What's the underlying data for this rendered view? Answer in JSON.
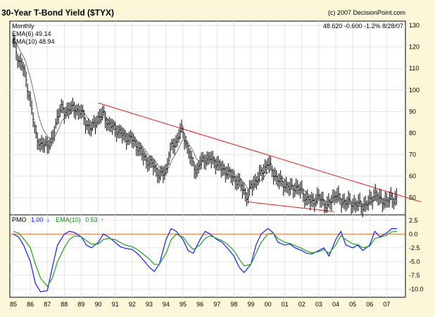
{
  "header": {
    "title": "30-Year T-Bond Yield ($TYX)",
    "copyright": "(c) 2007 DecisionPoint.com",
    "period": "Monthly",
    "quote": "48.620  -0.600  -1.2%  8/28/07"
  },
  "legend_top": [
    {
      "label": "EMA(6) 49.14",
      "color": "#109010"
    },
    {
      "label": "EMA(10) 48.94",
      "color": "#800080"
    }
  ],
  "legend_bottom": {
    "pmo_label": "PMO",
    "pmo_value": "1.00",
    "pmo_arrow": "↓",
    "pmo_color": "#1020ff",
    "ema_label": "EMA(10)",
    "ema_value": "0.53",
    "ema_arrow": "↑",
    "ema_color": "#109010"
  },
  "colors": {
    "background": "#fbf7d8",
    "plot_background": "#ffffff",
    "grid": "#d9d9d9",
    "price": "#000000",
    "trendline": "#e02020",
    "pmo": "#1020ff",
    "pmo_ema": "#20a020",
    "zero_line": "#e07020"
  },
  "chart_data": [
    {
      "type": "line",
      "title": "30-Year T-Bond Yield ($TYX)",
      "x_ticks": [
        "85",
        "86",
        "87",
        "88",
        "89",
        "90",
        "91",
        "92",
        "93",
        "94",
        "95",
        "96",
        "97",
        "98",
        "99",
        "00",
        "01",
        "02",
        "03",
        "04",
        "05",
        "06",
        "07"
      ],
      "xlim": [
        1985.0,
        2007.9
      ],
      "ylim": [
        42,
        132
      ],
      "y_ticks": [
        50,
        60,
        70,
        80,
        90,
        100,
        110,
        120,
        130
      ],
      "grid": true,
      "series": [
        {
          "name": "$TYX",
          "x": [
            1985.0,
            1985.3,
            1985.6,
            1986.0,
            1986.3,
            1986.6,
            1987.0,
            1987.3,
            1987.6,
            1987.8,
            1988.0,
            1988.3,
            1988.6,
            1989.0,
            1989.3,
            1989.6,
            1990.0,
            1990.3,
            1990.6,
            1991.0,
            1991.3,
            1991.6,
            1992.0,
            1992.3,
            1992.6,
            1993.0,
            1993.3,
            1993.6,
            1993.8,
            1994.0,
            1994.3,
            1994.6,
            1994.9,
            1995.2,
            1995.5,
            1995.8,
            1996.0,
            1996.3,
            1996.6,
            1997.0,
            1997.3,
            1997.6,
            1998.0,
            1998.3,
            1998.6,
            1998.8,
            1999.0,
            1999.3,
            1999.6,
            2000.0,
            2000.3,
            2000.6,
            2001.0,
            2001.3,
            2001.6,
            2002.0,
            2002.3,
            2002.6,
            2003.0,
            2003.3,
            2003.5,
            2003.8,
            2004.0,
            2004.3,
            2004.6,
            2005.0,
            2005.3,
            2005.6,
            2006.0,
            2006.3,
            2006.6,
            2007.0,
            2007.3,
            2007.6
          ],
          "values": [
            123,
            114,
            110,
            95,
            80,
            74,
            75,
            76,
            88,
            92,
            89,
            92,
            91,
            90,
            84,
            82,
            87,
            89,
            84,
            82,
            80,
            78,
            77,
            74,
            70,
            66,
            65,
            60,
            61,
            63,
            73,
            76,
            82,
            75,
            67,
            62,
            66,
            68,
            68,
            66,
            63,
            62,
            59,
            57,
            53,
            50,
            55,
            58,
            61,
            66,
            62,
            58,
            56,
            54,
            55,
            53,
            49,
            48,
            50,
            48,
            46,
            49,
            52,
            48,
            48,
            47,
            47,
            46,
            48,
            52,
            49,
            48,
            50,
            49
          ]
        }
      ],
      "annotations": [
        "upper trendline",
        "lower trendline"
      ]
    },
    {
      "type": "line",
      "title": "PMO",
      "ylim": [
        -11.5,
        3.5
      ],
      "y_ticks": [
        2.5,
        0,
        -2.5,
        -5.0,
        -7.5,
        -10.0
      ],
      "y_tick_labels": [
        "2.5",
        "0.0",
        "-2.5",
        "-5.0",
        "-7.5",
        "-10.0"
      ],
      "grid": true,
      "series": [
        {
          "name": "PMO",
          "x": [
            1985.0,
            1985.3,
            1985.6,
            1986.0,
            1986.3,
            1986.6,
            1987.0,
            1987.3,
            1987.6,
            1988.0,
            1988.3,
            1988.6,
            1989.0,
            1989.3,
            1989.6,
            1990.0,
            1990.3,
            1990.6,
            1991.0,
            1991.3,
            1991.6,
            1992.0,
            1992.3,
            1992.6,
            1993.0,
            1993.3,
            1993.6,
            1994.0,
            1994.3,
            1994.6,
            1995.0,
            1995.3,
            1995.6,
            1996.0,
            1996.3,
            1996.6,
            1997.0,
            1997.3,
            1997.6,
            1998.0,
            1998.3,
            1998.6,
            1999.0,
            1999.3,
            1999.6,
            2000.0,
            2000.3,
            2000.6,
            2001.0,
            2001.3,
            2001.6,
            2002.0,
            2002.3,
            2002.6,
            2003.0,
            2003.3,
            2003.6,
            2004.0,
            2004.3,
            2004.6,
            2005.0,
            2005.3,
            2005.6,
            2006.0,
            2006.3,
            2006.6,
            2007.0,
            2007.3,
            2007.6
          ],
          "values": [
            0,
            -0.5,
            -2,
            -5,
            -9,
            -10.5,
            -10.3,
            -6,
            -2,
            0,
            0.5,
            0.3,
            -0.5,
            -2,
            -2.5,
            -1.5,
            0,
            -0.5,
            -1.5,
            -2.3,
            -2.6,
            -2.8,
            -3.5,
            -4.5,
            -6,
            -6.8,
            -5.5,
            -1,
            1,
            0.5,
            -1,
            -3,
            -3.5,
            -1,
            0.5,
            0,
            -1,
            -1.5,
            -2.5,
            -4,
            -6,
            -7,
            -5.5,
            -2,
            0,
            1,
            0.3,
            -1.5,
            -2,
            -1.8,
            -2.5,
            -3,
            -3.5,
            -3.6,
            -3,
            -2.5,
            -4,
            -1,
            0.5,
            -2,
            -2.5,
            -2,
            -3,
            -2,
            0.5,
            -0.5,
            0.2,
            1.0,
            1.0
          ]
        },
        {
          "name": "EMA(10)",
          "x": [
            1985.0,
            1985.3,
            1985.6,
            1986.0,
            1986.3,
            1986.6,
            1987.0,
            1987.3,
            1987.6,
            1988.0,
            1988.3,
            1988.6,
            1989.0,
            1989.3,
            1989.6,
            1990.0,
            1990.3,
            1990.6,
            1991.0,
            1991.3,
            1991.6,
            1992.0,
            1992.3,
            1992.6,
            1993.0,
            1993.3,
            1993.6,
            1994.0,
            1994.3,
            1994.6,
            1995.0,
            1995.3,
            1995.6,
            1996.0,
            1996.3,
            1996.6,
            1997.0,
            1997.3,
            1997.6,
            1998.0,
            1998.3,
            1998.6,
            1999.0,
            1999.3,
            1999.6,
            2000.0,
            2000.3,
            2000.6,
            2001.0,
            2001.3,
            2001.6,
            2002.0,
            2002.3,
            2002.6,
            2003.0,
            2003.3,
            2003.6,
            2004.0,
            2004.3,
            2004.6,
            2005.0,
            2005.3,
            2005.6,
            2006.0,
            2006.3,
            2006.6,
            2007.0,
            2007.3,
            2007.6
          ],
          "values": [
            0.5,
            0.2,
            -0.8,
            -2.5,
            -5.5,
            -8,
            -9.5,
            -8,
            -5,
            -2.5,
            -1,
            -0.3,
            -0.5,
            -1.2,
            -1.8,
            -1.8,
            -1,
            -0.8,
            -1,
            -1.5,
            -2,
            -2.3,
            -2.8,
            -3.5,
            -4.5,
            -5.5,
            -5.5,
            -3.5,
            -1,
            0,
            -0.5,
            -1.8,
            -2.8,
            -2,
            -0.8,
            -0.3,
            -0.8,
            -1.2,
            -1.8,
            -3,
            -4.5,
            -5.8,
            -5.5,
            -3.5,
            -1.5,
            0,
            0.2,
            -0.8,
            -1.5,
            -1.7,
            -2.1,
            -2.6,
            -3.1,
            -3.4,
            -3.2,
            -2.8,
            -3.5,
            -2,
            -0.3,
            -1,
            -1.8,
            -1.9,
            -2.5,
            -2.2,
            -0.8,
            -0.6,
            -0.2,
            0.4,
            0.53
          ]
        }
      ]
    }
  ]
}
